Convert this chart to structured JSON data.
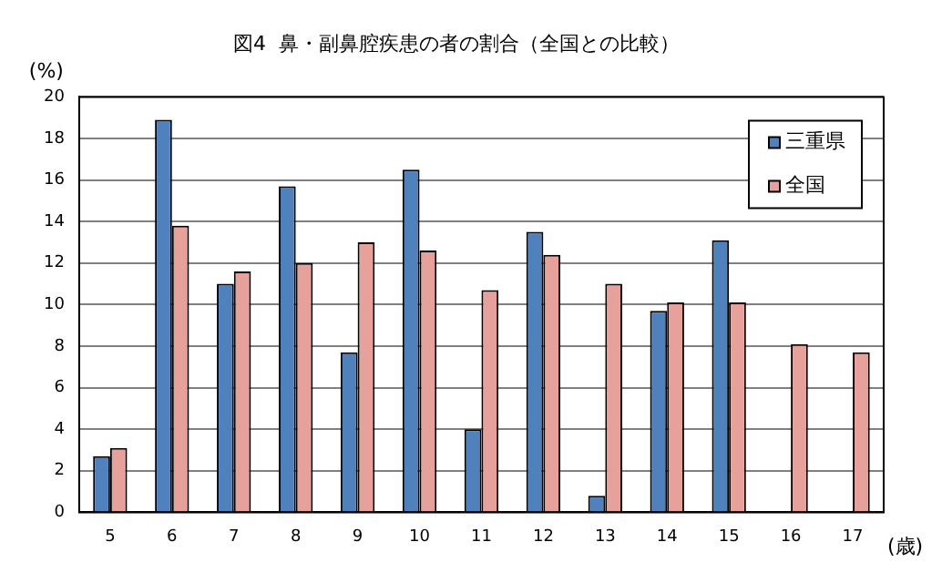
{
  "chart_data": {
    "type": "bar",
    "title": "図4  鼻・副鼻腔疾患の者の割合（全国との比較）",
    "ylabel": "(%)",
    "xlabel": "(歳)",
    "categories": [
      "5",
      "6",
      "7",
      "8",
      "9",
      "10",
      "11",
      "12",
      "13",
      "14",
      "15",
      "16",
      "17"
    ],
    "series": [
      {
        "name": "三重県",
        "color": "#4f81bd",
        "values": [
          2.7,
          18.9,
          11.0,
          15.7,
          7.7,
          16.5,
          4.0,
          13.5,
          0.8,
          9.7,
          13.1,
          null,
          null
        ]
      },
      {
        "name": "全国",
        "color": "#e6a19b",
        "values": [
          3.1,
          13.8,
          11.6,
          12.0,
          13.0,
          12.6,
          10.7,
          12.4,
          11.0,
          10.1,
          10.1,
          8.1,
          7.7
        ]
      }
    ],
    "ylim": [
      0,
      20
    ],
    "yticks": [
      0,
      2,
      4,
      6,
      8,
      10,
      12,
      14,
      16,
      18,
      20
    ],
    "grid": "y",
    "legend": "top right"
  }
}
